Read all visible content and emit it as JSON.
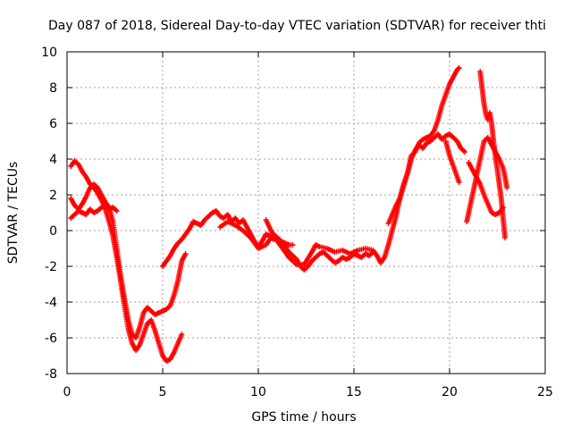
{
  "chart_data": {
    "type": "scatter",
    "title": "Day 087 of 2018, Sidereal Day-to-day VTEC variation (SDTVAR) for receiver thti",
    "xlabel": "GPS time / hours",
    "ylabel": "SDTVAR / TECUs",
    "xlim": [
      0,
      25
    ],
    "ylim": [
      -8,
      10
    ],
    "xticks": [
      0,
      5,
      10,
      15,
      20,
      25
    ],
    "yticks": [
      -8,
      -6,
      -4,
      -2,
      0,
      2,
      4,
      6,
      8,
      10
    ],
    "xtick_labels": [
      "0",
      "5",
      "10",
      "15",
      "20",
      "25"
    ],
    "ytick_labels": [
      "-8",
      "-6",
      "-4",
      "-2",
      "0",
      "2",
      "4",
      "6",
      "8",
      "10"
    ],
    "grid": true,
    "marker": "+",
    "color": "#ff0000",
    "series": [
      {
        "points": [
          [
            0.2,
            3.6
          ],
          [
            0.4,
            3.9
          ],
          [
            0.6,
            3.7
          ],
          [
            0.8,
            3.3
          ],
          [
            1.0,
            3.0
          ],
          [
            1.2,
            2.6
          ],
          [
            1.4,
            2.4
          ],
          [
            1.6,
            2.1
          ],
          [
            1.8,
            1.7
          ],
          [
            2.0,
            1.2
          ],
          [
            2.2,
            0.5
          ],
          [
            2.4,
            -0.3
          ],
          [
            2.6,
            -1.5
          ],
          [
            2.8,
            -2.8
          ],
          [
            3.0,
            -4.2
          ],
          [
            3.2,
            -5.5
          ],
          [
            3.4,
            -6.3
          ],
          [
            3.6,
            -6.7
          ],
          [
            3.8,
            -6.4
          ],
          [
            4.0,
            -5.8
          ],
          [
            4.2,
            -5.2
          ],
          [
            4.4,
            -5.0
          ],
          [
            4.6,
            -5.6
          ],
          [
            4.8,
            -6.3
          ],
          [
            5.0,
            -7.0
          ],
          [
            5.2,
            -7.3
          ],
          [
            5.4,
            -7.2
          ],
          [
            5.6,
            -6.8
          ],
          [
            5.8,
            -6.3
          ],
          [
            6.0,
            -5.8
          ]
        ]
      },
      {
        "points": [
          [
            0.2,
            1.8
          ],
          [
            0.4,
            1.4
          ],
          [
            0.6,
            1.2
          ],
          [
            0.8,
            1.5
          ],
          [
            1.0,
            1.9
          ],
          [
            1.2,
            2.4
          ],
          [
            1.4,
            2.6
          ],
          [
            1.6,
            2.4
          ],
          [
            1.8,
            2.0
          ],
          [
            2.0,
            1.6
          ],
          [
            2.2,
            1.3
          ],
          [
            2.4,
            0.5
          ],
          [
            2.6,
            -1.0
          ],
          [
            2.8,
            -2.5
          ],
          [
            3.0,
            -3.8
          ],
          [
            3.2,
            -5.0
          ],
          [
            3.4,
            -5.8
          ],
          [
            3.6,
            -6.0
          ],
          [
            3.8,
            -5.4
          ],
          [
            4.0,
            -4.6
          ],
          [
            4.2,
            -4.3
          ],
          [
            4.4,
            -4.5
          ],
          [
            4.6,
            -4.7
          ],
          [
            4.8,
            -4.6
          ],
          [
            5.0,
            -4.5
          ],
          [
            5.2,
            -4.4
          ],
          [
            5.4,
            -4.2
          ],
          [
            5.6,
            -3.6
          ],
          [
            5.8,
            -2.8
          ],
          [
            6.0,
            -1.7
          ],
          [
            6.2,
            -1.3
          ]
        ]
      },
      {
        "points": [
          [
            0.2,
            0.7
          ],
          [
            0.4,
            0.9
          ],
          [
            0.6,
            1.1
          ],
          [
            0.8,
            1.0
          ],
          [
            1.0,
            0.9
          ],
          [
            1.2,
            1.2
          ],
          [
            1.4,
            1.0
          ],
          [
            1.6,
            1.1
          ],
          [
            1.8,
            1.3
          ],
          [
            2.0,
            1.4
          ],
          [
            2.2,
            1.2
          ],
          [
            2.4,
            1.3
          ],
          [
            2.6,
            1.1
          ]
        ]
      },
      {
        "points": [
          [
            5.0,
            -2.0
          ],
          [
            5.2,
            -1.7
          ],
          [
            5.4,
            -1.4
          ],
          [
            5.6,
            -1.0
          ],
          [
            5.8,
            -0.7
          ],
          [
            6.0,
            -0.5
          ],
          [
            6.2,
            -0.2
          ],
          [
            6.4,
            0.1
          ],
          [
            6.6,
            0.5
          ],
          [
            6.8,
            0.4
          ],
          [
            7.0,
            0.3
          ],
          [
            7.2,
            0.6
          ],
          [
            7.4,
            0.8
          ],
          [
            7.6,
            1.0
          ],
          [
            7.8,
            1.1
          ],
          [
            8.0,
            0.8
          ],
          [
            8.2,
            0.7
          ],
          [
            8.4,
            0.9
          ],
          [
            8.6,
            0.5
          ],
          [
            8.8,
            0.7
          ],
          [
            9.0,
            0.4
          ],
          [
            9.2,
            0.6
          ],
          [
            9.4,
            0.2
          ],
          [
            9.6,
            -0.2
          ],
          [
            9.8,
            -0.6
          ],
          [
            10.0,
            -0.9
          ],
          [
            10.2,
            -0.6
          ],
          [
            10.4,
            -0.2
          ],
          [
            10.6,
            -0.3
          ],
          [
            10.8,
            -0.5
          ],
          [
            11.0,
            -0.4
          ],
          [
            11.2,
            -0.6
          ],
          [
            11.4,
            -0.7
          ],
          [
            11.6,
            -0.8
          ],
          [
            11.8,
            -0.8
          ]
        ]
      },
      {
        "points": [
          [
            8.0,
            0.2
          ],
          [
            8.4,
            0.5
          ],
          [
            8.8,
            0.3
          ],
          [
            9.2,
            0.0
          ],
          [
            9.6,
            -0.4
          ],
          [
            10.0,
            -1.0
          ],
          [
            10.4,
            -0.8
          ],
          [
            10.8,
            -0.2
          ],
          [
            11.2,
            -0.6
          ],
          [
            11.6,
            -1.2
          ],
          [
            12.0,
            -1.6
          ],
          [
            12.2,
            -2.0
          ],
          [
            12.4,
            -2.2
          ],
          [
            12.6,
            -2.0
          ],
          [
            12.8,
            -1.7
          ],
          [
            13.0,
            -1.5
          ],
          [
            13.2,
            -1.3
          ],
          [
            13.4,
            -1.2
          ],
          [
            13.6,
            -1.4
          ],
          [
            13.8,
            -1.6
          ],
          [
            14.0,
            -1.8
          ],
          [
            14.2,
            -1.7
          ],
          [
            14.4,
            -1.5
          ],
          [
            14.6,
            -1.6
          ],
          [
            14.8,
            -1.5
          ],
          [
            15.0,
            -1.3
          ],
          [
            15.2,
            -1.4
          ],
          [
            15.4,
            -1.5
          ],
          [
            15.6,
            -1.3
          ],
          [
            15.8,
            -1.4
          ],
          [
            16.0,
            -1.2
          ]
        ]
      },
      {
        "points": [
          [
            10.4,
            0.6
          ],
          [
            10.8,
            -0.3
          ],
          [
            11.2,
            -0.9
          ],
          [
            11.6,
            -1.5
          ],
          [
            12.0,
            -1.9
          ],
          [
            12.4,
            -1.9
          ],
          [
            12.8,
            -1.2
          ],
          [
            13.0,
            -0.8
          ],
          [
            13.2,
            -0.9
          ],
          [
            13.6,
            -1.0
          ],
          [
            14.0,
            -1.2
          ],
          [
            14.4,
            -1.1
          ],
          [
            14.8,
            -1.3
          ],
          [
            15.2,
            -1.1
          ],
          [
            15.6,
            -1.0
          ],
          [
            16.0,
            -1.1
          ],
          [
            16.2,
            -1.4
          ],
          [
            16.4,
            -1.8
          ],
          [
            16.6,
            -1.5
          ],
          [
            16.8,
            -0.8
          ],
          [
            17.0,
            0.0
          ],
          [
            17.2,
            0.8
          ],
          [
            17.4,
            1.8
          ],
          [
            17.6,
            2.6
          ],
          [
            17.8,
            3.2
          ],
          [
            18.0,
            4.0
          ],
          [
            18.2,
            4.5
          ],
          [
            18.4,
            4.8
          ],
          [
            18.6,
            4.6
          ],
          [
            18.8,
            4.9
          ],
          [
            19.0,
            5.0
          ],
          [
            19.2,
            5.2
          ],
          [
            19.4,
            5.4
          ],
          [
            19.6,
            5.1
          ],
          [
            19.8,
            5.3
          ],
          [
            20.0,
            5.4
          ],
          [
            20.2,
            5.2
          ],
          [
            20.4,
            5.0
          ],
          [
            20.6,
            4.6
          ],
          [
            20.8,
            4.4
          ]
        ]
      },
      {
        "points": [
          [
            16.8,
            0.4
          ],
          [
            17.0,
            0.9
          ],
          [
            17.2,
            1.4
          ],
          [
            17.4,
            1.8
          ],
          [
            17.6,
            2.5
          ],
          [
            17.8,
            3.2
          ],
          [
            18.0,
            4.2
          ],
          [
            18.2,
            4.4
          ],
          [
            18.4,
            4.9
          ],
          [
            18.6,
            5.1
          ],
          [
            18.8,
            5.2
          ],
          [
            19.0,
            5.3
          ],
          [
            19.2,
            5.6
          ],
          [
            19.4,
            6.2
          ],
          [
            19.6,
            7.0
          ],
          [
            19.8,
            7.6
          ],
          [
            20.0,
            8.2
          ],
          [
            20.2,
            8.6
          ],
          [
            20.4,
            9.0
          ],
          [
            20.5,
            9.1
          ]
        ]
      },
      {
        "points": [
          [
            19.8,
            5.0
          ],
          [
            20.0,
            4.2
          ],
          [
            20.2,
            3.6
          ],
          [
            20.4,
            3.0
          ],
          [
            20.5,
            2.7
          ]
        ]
      },
      {
        "points": [
          [
            20.9,
            0.5
          ],
          [
            21.0,
            1.0
          ],
          [
            21.2,
            2.0
          ],
          [
            21.4,
            3.0
          ],
          [
            21.6,
            4.0
          ],
          [
            21.8,
            5.0
          ],
          [
            22.0,
            5.2
          ],
          [
            22.2,
            4.8
          ],
          [
            22.4,
            4.4
          ],
          [
            22.6,
            4.0
          ],
          [
            22.8,
            3.5
          ],
          [
            22.9,
            3.0
          ],
          [
            23.0,
            2.4
          ]
        ]
      },
      {
        "points": [
          [
            21.6,
            8.9
          ],
          [
            21.7,
            8.0
          ],
          [
            21.8,
            7.1
          ],
          [
            21.9,
            6.5
          ],
          [
            22.0,
            6.2
          ],
          [
            22.1,
            6.6
          ],
          [
            22.2,
            6.0
          ],
          [
            22.3,
            5.0
          ],
          [
            22.4,
            4.1
          ],
          [
            22.5,
            3.4
          ],
          [
            22.6,
            2.6
          ],
          [
            22.7,
            1.8
          ],
          [
            22.8,
            0.7
          ],
          [
            22.9,
            -0.4
          ]
        ]
      },
      {
        "points": [
          [
            21.0,
            3.8
          ],
          [
            21.2,
            3.4
          ],
          [
            21.4,
            3.0
          ],
          [
            21.6,
            2.6
          ],
          [
            21.8,
            2.0
          ],
          [
            22.0,
            1.5
          ],
          [
            22.2,
            1.0
          ],
          [
            22.4,
            0.9
          ],
          [
            22.6,
            1.0
          ],
          [
            22.8,
            1.3
          ]
        ]
      }
    ]
  }
}
